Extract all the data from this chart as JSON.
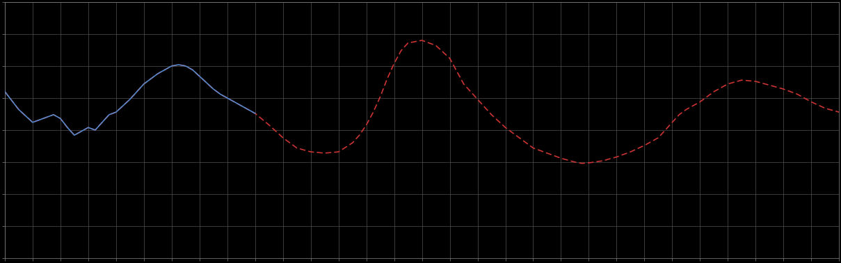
{
  "background_color": "#000000",
  "plot_bg_color": "#000000",
  "grid_color": "#666666",
  "line1_color": "#5588cc",
  "line2_color": "#cc3333",
  "line_width": 1.2,
  "figsize": [
    12.09,
    3.78
  ],
  "dpi": 100,
  "xlim": [
    0,
    120
  ],
  "ylim": [
    0,
    10
  ],
  "x_gridlines": 30,
  "y_gridlines": 8,
  "transition_x": 36,
  "blue_x": [
    0,
    2,
    4,
    6,
    7,
    8,
    9,
    10,
    11,
    12,
    13,
    14,
    15,
    16,
    18,
    20,
    22,
    24,
    25,
    26,
    27,
    28,
    29,
    30,
    31,
    32,
    33,
    34,
    35,
    36
  ],
  "blue_y": [
    6.5,
    5.8,
    5.3,
    5.5,
    5.6,
    5.45,
    5.1,
    4.8,
    4.95,
    5.1,
    5.0,
    5.3,
    5.6,
    5.7,
    6.2,
    6.8,
    7.2,
    7.5,
    7.55,
    7.5,
    7.35,
    7.1,
    6.85,
    6.6,
    6.4,
    6.25,
    6.1,
    5.95,
    5.8,
    5.65
  ],
  "red_x": [
    0,
    2,
    4,
    6,
    7,
    8,
    9,
    10,
    11,
    12,
    13,
    14,
    15,
    16,
    18,
    20,
    22,
    24,
    25,
    26,
    27,
    28,
    29,
    30,
    31,
    32,
    33,
    34,
    35,
    36,
    38,
    40,
    42,
    44,
    46,
    48,
    50,
    51,
    52,
    53,
    54,
    55,
    56,
    57,
    58,
    60,
    62,
    64,
    65,
    66,
    68,
    70,
    72,
    74,
    75,
    76,
    78,
    80,
    82,
    83,
    84,
    86,
    88,
    90,
    92,
    94,
    95,
    96,
    97,
    98,
    100,
    102,
    104,
    106,
    108,
    110,
    112,
    114,
    116,
    118,
    120
  ],
  "red_y": [
    6.5,
    5.8,
    5.3,
    5.5,
    5.6,
    5.45,
    5.1,
    4.8,
    4.95,
    5.1,
    5.0,
    5.3,
    5.6,
    5.7,
    6.2,
    6.8,
    7.2,
    7.5,
    7.55,
    7.5,
    7.35,
    7.1,
    6.85,
    6.6,
    6.4,
    6.25,
    6.1,
    5.95,
    5.8,
    5.65,
    5.2,
    4.7,
    4.3,
    4.15,
    4.1,
    4.15,
    4.5,
    4.8,
    5.2,
    5.7,
    6.3,
    7.0,
    7.6,
    8.1,
    8.4,
    8.5,
    8.3,
    7.8,
    7.3,
    6.8,
    6.2,
    5.6,
    5.1,
    4.7,
    4.5,
    4.3,
    4.1,
    3.9,
    3.75,
    3.7,
    3.72,
    3.8,
    3.95,
    4.15,
    4.4,
    4.7,
    5.0,
    5.3,
    5.6,
    5.8,
    6.1,
    6.5,
    6.8,
    6.95,
    6.9,
    6.75,
    6.6,
    6.4,
    6.1,
    5.85,
    5.7
  ]
}
